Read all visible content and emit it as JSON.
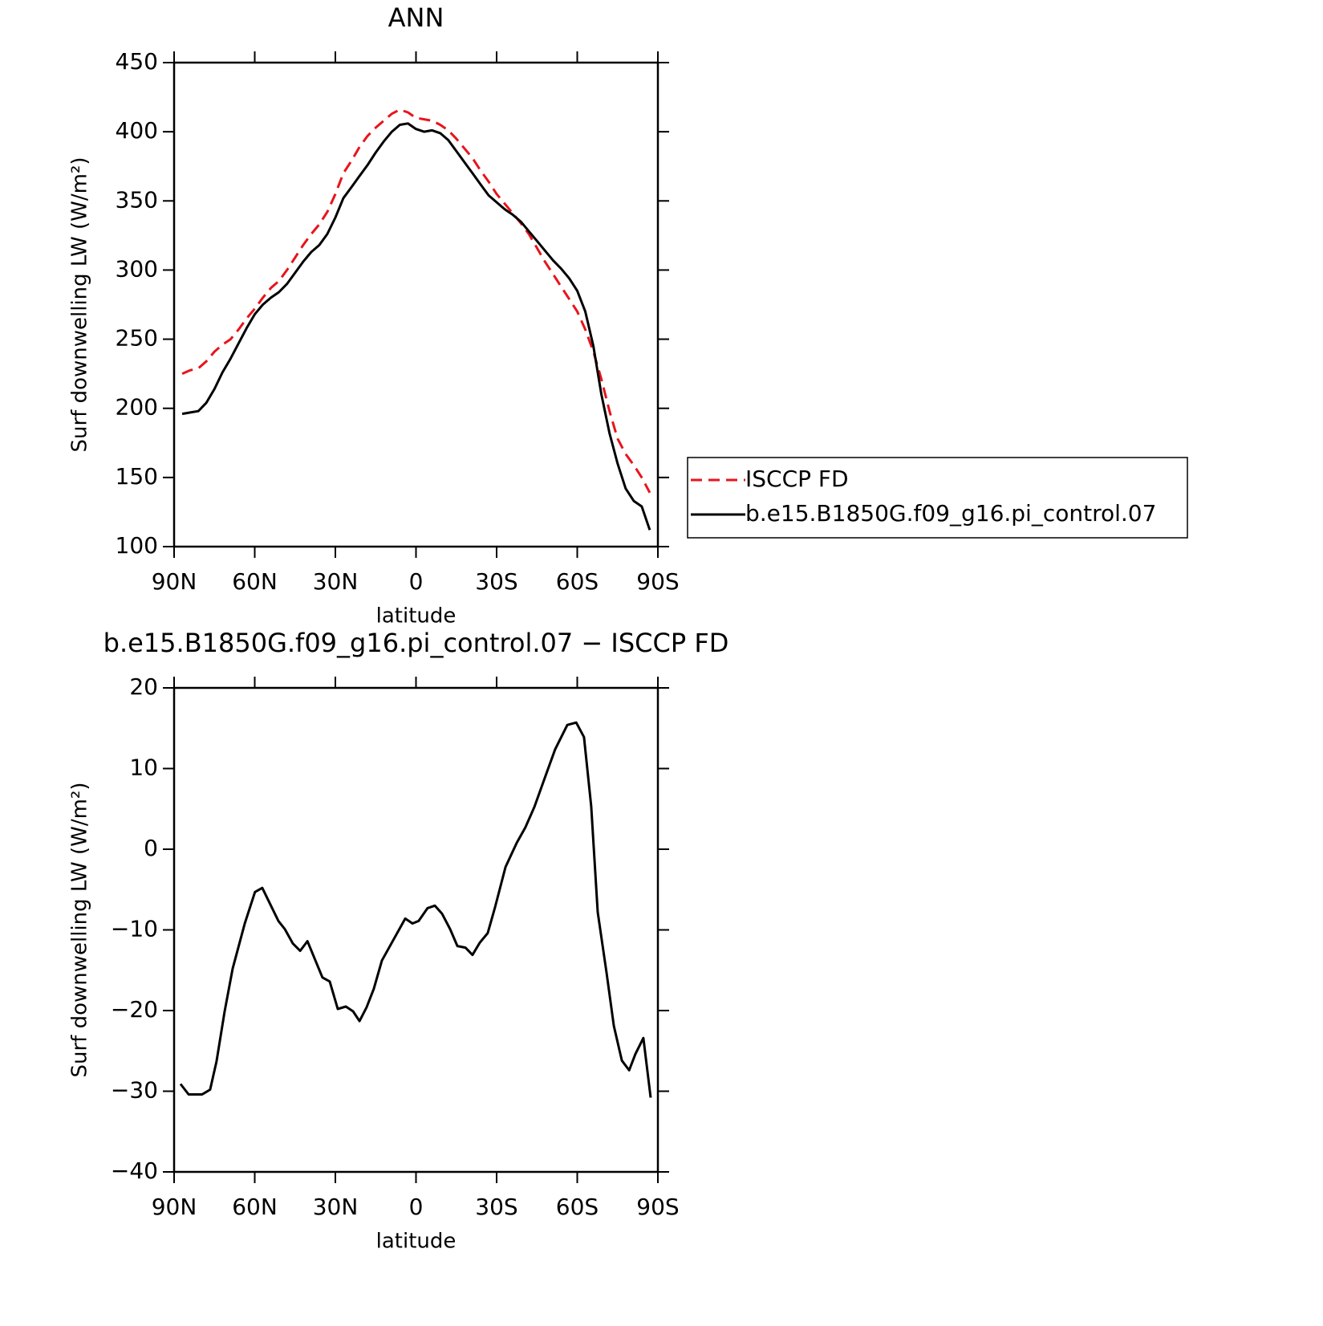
{
  "chart_data": [
    {
      "type": "line",
      "title": "ANN",
      "xlabel": "latitude",
      "ylabel": "Surf downwelling LW (W/m²)",
      "xlim": [
        90,
        -90
      ],
      "ylim": [
        100,
        450
      ],
      "xticks": [
        {
          "value": 90,
          "label": "90N"
        },
        {
          "value": 60,
          "label": "60N"
        },
        {
          "value": 30,
          "label": "30N"
        },
        0,
        {
          "value": -30,
          "label": "30S"
        },
        {
          "value": -60,
          "label": "60S"
        },
        {
          "value": -90,
          "label": "90S"
        }
      ],
      "yticks": [
        100,
        150,
        200,
        250,
        300,
        350,
        400,
        450
      ],
      "legend": "right",
      "x": [
        87,
        84,
        81,
        78,
        75,
        72,
        69,
        66,
        63,
        60,
        57,
        54,
        51,
        48,
        45,
        42,
        39,
        36,
        33,
        30,
        27,
        24,
        21,
        18,
        15,
        12,
        9,
        6,
        3,
        0,
        -3,
        -6,
        -9,
        -12,
        -15,
        -18,
        -21,
        -24,
        -27,
        -30,
        -33,
        -36,
        -39,
        -42,
        -45,
        -48,
        -51,
        -54,
        -57,
        -60,
        -63,
        -66,
        -69,
        -72,
        -75,
        -78,
        -81,
        -84,
        -87
      ],
      "series": [
        {
          "name": "ISCCP FD",
          "color": "#e8141c",
          "line_style": "dashed",
          "values": [
            225,
            227.5,
            229,
            234,
            241,
            246,
            250,
            257,
            265,
            272,
            280,
            287,
            292,
            300,
            309,
            318,
            326,
            333,
            342,
            355,
            370,
            379,
            389,
            397,
            403,
            408,
            413,
            416,
            414,
            410,
            409,
            408,
            405,
            401,
            395,
            388,
            381,
            372,
            364,
            355,
            348,
            341,
            334,
            326,
            316,
            306,
            297,
            288,
            279,
            270,
            257,
            241,
            221,
            198,
            178,
            167,
            159,
            150,
            139
          ]
        },
        {
          "name": "b.e15.B1850G.f09_g16.pi_control.07",
          "color": "#000000",
          "line_style": "solid",
          "values": [
            196,
            197,
            198,
            204,
            214,
            226,
            236,
            247,
            258,
            268,
            275,
            280,
            284,
            290,
            298,
            306,
            313,
            318,
            326,
            338,
            352,
            360,
            368,
            376,
            385,
            393,
            400,
            405,
            406,
            402,
            400,
            401,
            399,
            394,
            386,
            378,
            370,
            362,
            354,
            349,
            344,
            340,
            335,
            328,
            321,
            314,
            307,
            301,
            294,
            285,
            270,
            245,
            210,
            182,
            160,
            142,
            133,
            129,
            112
          ]
        }
      ]
    },
    {
      "type": "line",
      "title": "b.e15.B1850G.f09_g16.pi_control.07 − ISCCP FD",
      "xlabel": "latitude",
      "ylabel": "Surf downwelling LW (W/m²)",
      "xlim": [
        90,
        -90
      ],
      "ylim": [
        -40,
        20
      ],
      "xticks": [
        {
          "value": 90,
          "label": "90N"
        },
        {
          "value": 60,
          "label": "60N"
        },
        {
          "value": 30,
          "label": "30N"
        },
        0,
        {
          "value": -30,
          "label": "30S"
        },
        {
          "value": -60,
          "label": "60S"
        },
        {
          "value": -90,
          "label": "90S"
        }
      ],
      "yticks": [
        {
          "value": -40,
          "label": "−40"
        },
        {
          "value": -30,
          "label": "−30"
        },
        {
          "value": -20,
          "label": "−20"
        },
        {
          "value": -10,
          "label": "−10"
        },
        0,
        10,
        20
      ],
      "x": [
        87.6,
        84.6,
        79.6,
        76.6,
        74.2,
        71.2,
        68.2,
        63.7,
        59.9,
        57.2,
        51.2,
        48.8,
        45.8,
        43.1,
        40.4,
        34.8,
        32.1,
        29.1,
        26.1,
        23.4,
        21.0,
        18.4,
        15.7,
        12.7,
        4.0,
        1.3,
        -1.0,
        -4.3,
        -7.0,
        -9.7,
        -12.7,
        -15.4,
        -18.4,
        -21.0,
        -23.7,
        -26.7,
        -29.4,
        -33.3,
        -37.5,
        -40.7,
        -44.0,
        -48.2,
        -51.8,
        -56.3,
        -59.6,
        -62.5,
        -65.2,
        -67.6,
        -70.9,
        -73.6,
        -76.6,
        -79.3,
        -81.6,
        -84.6,
        -87.3
      ],
      "series": [
        {
          "name": null,
          "color": "#000000",
          "line_style": "solid",
          "values": [
            -29.1,
            -30.4,
            -30.4,
            -29.8,
            -26.3,
            -20.1,
            -14.8,
            -9.2,
            -5.3,
            -4.8,
            -8.9,
            -9.9,
            -11.7,
            -12.6,
            -11.4,
            -15.9,
            -16.4,
            -19.8,
            -19.5,
            -20.1,
            -21.3,
            -19.6,
            -17.3,
            -13.8,
            -8.6,
            -9.2,
            -8.9,
            -7.3,
            -7.0,
            -8.0,
            -9.9,
            -12.0,
            -12.2,
            -13.1,
            -11.6,
            -10.4,
            -7.2,
            -2.2,
            0.8,
            2.7,
            5.2,
            9.1,
            12.4,
            15.4,
            15.7,
            13.9,
            5.3,
            -7.8,
            -15.3,
            -21.9,
            -26.2,
            -27.4,
            -25.4,
            -23.4,
            -30.8
          ]
        }
      ]
    }
  ]
}
